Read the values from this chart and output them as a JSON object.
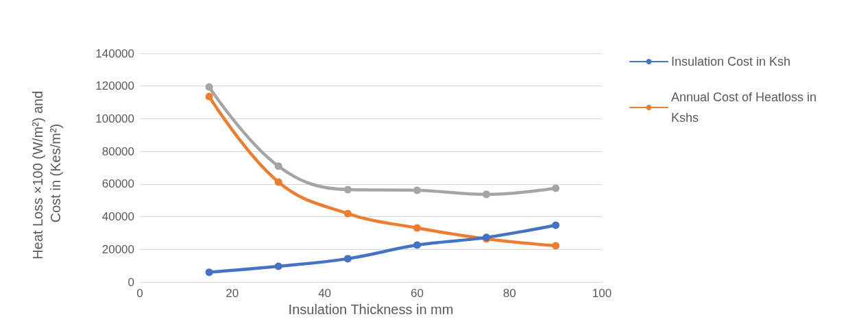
{
  "chart_data": {
    "type": "line",
    "xlabel": "Insulation Thickness in mm",
    "ylabel": "Heat Loss ×100 (W/m²) and Cost in (Kes/m²)",
    "x": [
      15,
      30,
      45,
      60,
      75,
      90
    ],
    "series": [
      {
        "name": "Insulation Cost in Ksh",
        "color": "#4472c4",
        "values": [
          6000,
          9600,
          14300,
          22600,
          27300,
          34800
        ]
      },
      {
        "name": "Annual Cost of Heatloss in Kshs",
        "color": "#ed7d31",
        "values": [
          113600,
          61200,
          41900,
          33100,
          26400,
          22200
        ]
      },
      {
        "color": "#a5a5a5",
        "values": [
          119500,
          70900,
          56600,
          56200,
          53700,
          57400
        ]
      }
    ],
    "xlim": [
      0,
      100
    ],
    "xticks": [
      0,
      20,
      40,
      60,
      80,
      100
    ],
    "ylim": [
      0,
      140000
    ],
    "yticks": [
      0,
      20000,
      40000,
      60000,
      80000,
      100000,
      120000,
      140000
    ],
    "grid": "y",
    "legend": "right",
    "marker": "circle",
    "line_style": "solid"
  }
}
